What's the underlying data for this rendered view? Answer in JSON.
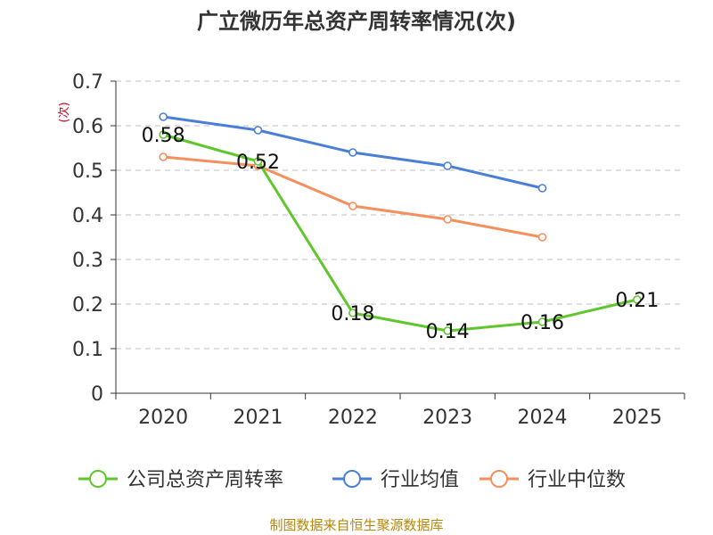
{
  "chart_data": {
    "type": "line",
    "title": "广立微历年总资产周转率情况(次)",
    "ylabel": "(次)",
    "xlabel": "",
    "categories": [
      "2020",
      "2021",
      "2022",
      "2023",
      "2024",
      "2025"
    ],
    "ylim": [
      0,
      0.7
    ],
    "yticks": [
      "0",
      "0.1",
      "0.2",
      "0.3",
      "0.4",
      "0.5",
      "0.6",
      "0.7"
    ],
    "grid": true,
    "legend_position": "bottom",
    "series": [
      {
        "name": "公司总资产周转率",
        "color": "#5ec72c",
        "values": [
          0.58,
          0.52,
          0.18,
          0.14,
          0.16,
          0.21
        ],
        "labels": [
          "0.58",
          "0.52",
          "0.18",
          "0.14",
          "0.16",
          "0.21"
        ],
        "show_labels": true
      },
      {
        "name": "行业均值",
        "color": "#4a7fd8",
        "values": [
          0.62,
          0.59,
          0.54,
          0.51,
          0.46,
          null
        ],
        "show_labels": false
      },
      {
        "name": "行业中位数",
        "color": "#f58f5d",
        "values": [
          0.53,
          0.51,
          0.42,
          0.39,
          0.35,
          null
        ],
        "show_labels": false
      }
    ],
    "source": "制图数据来自恒生聚源数据库"
  }
}
